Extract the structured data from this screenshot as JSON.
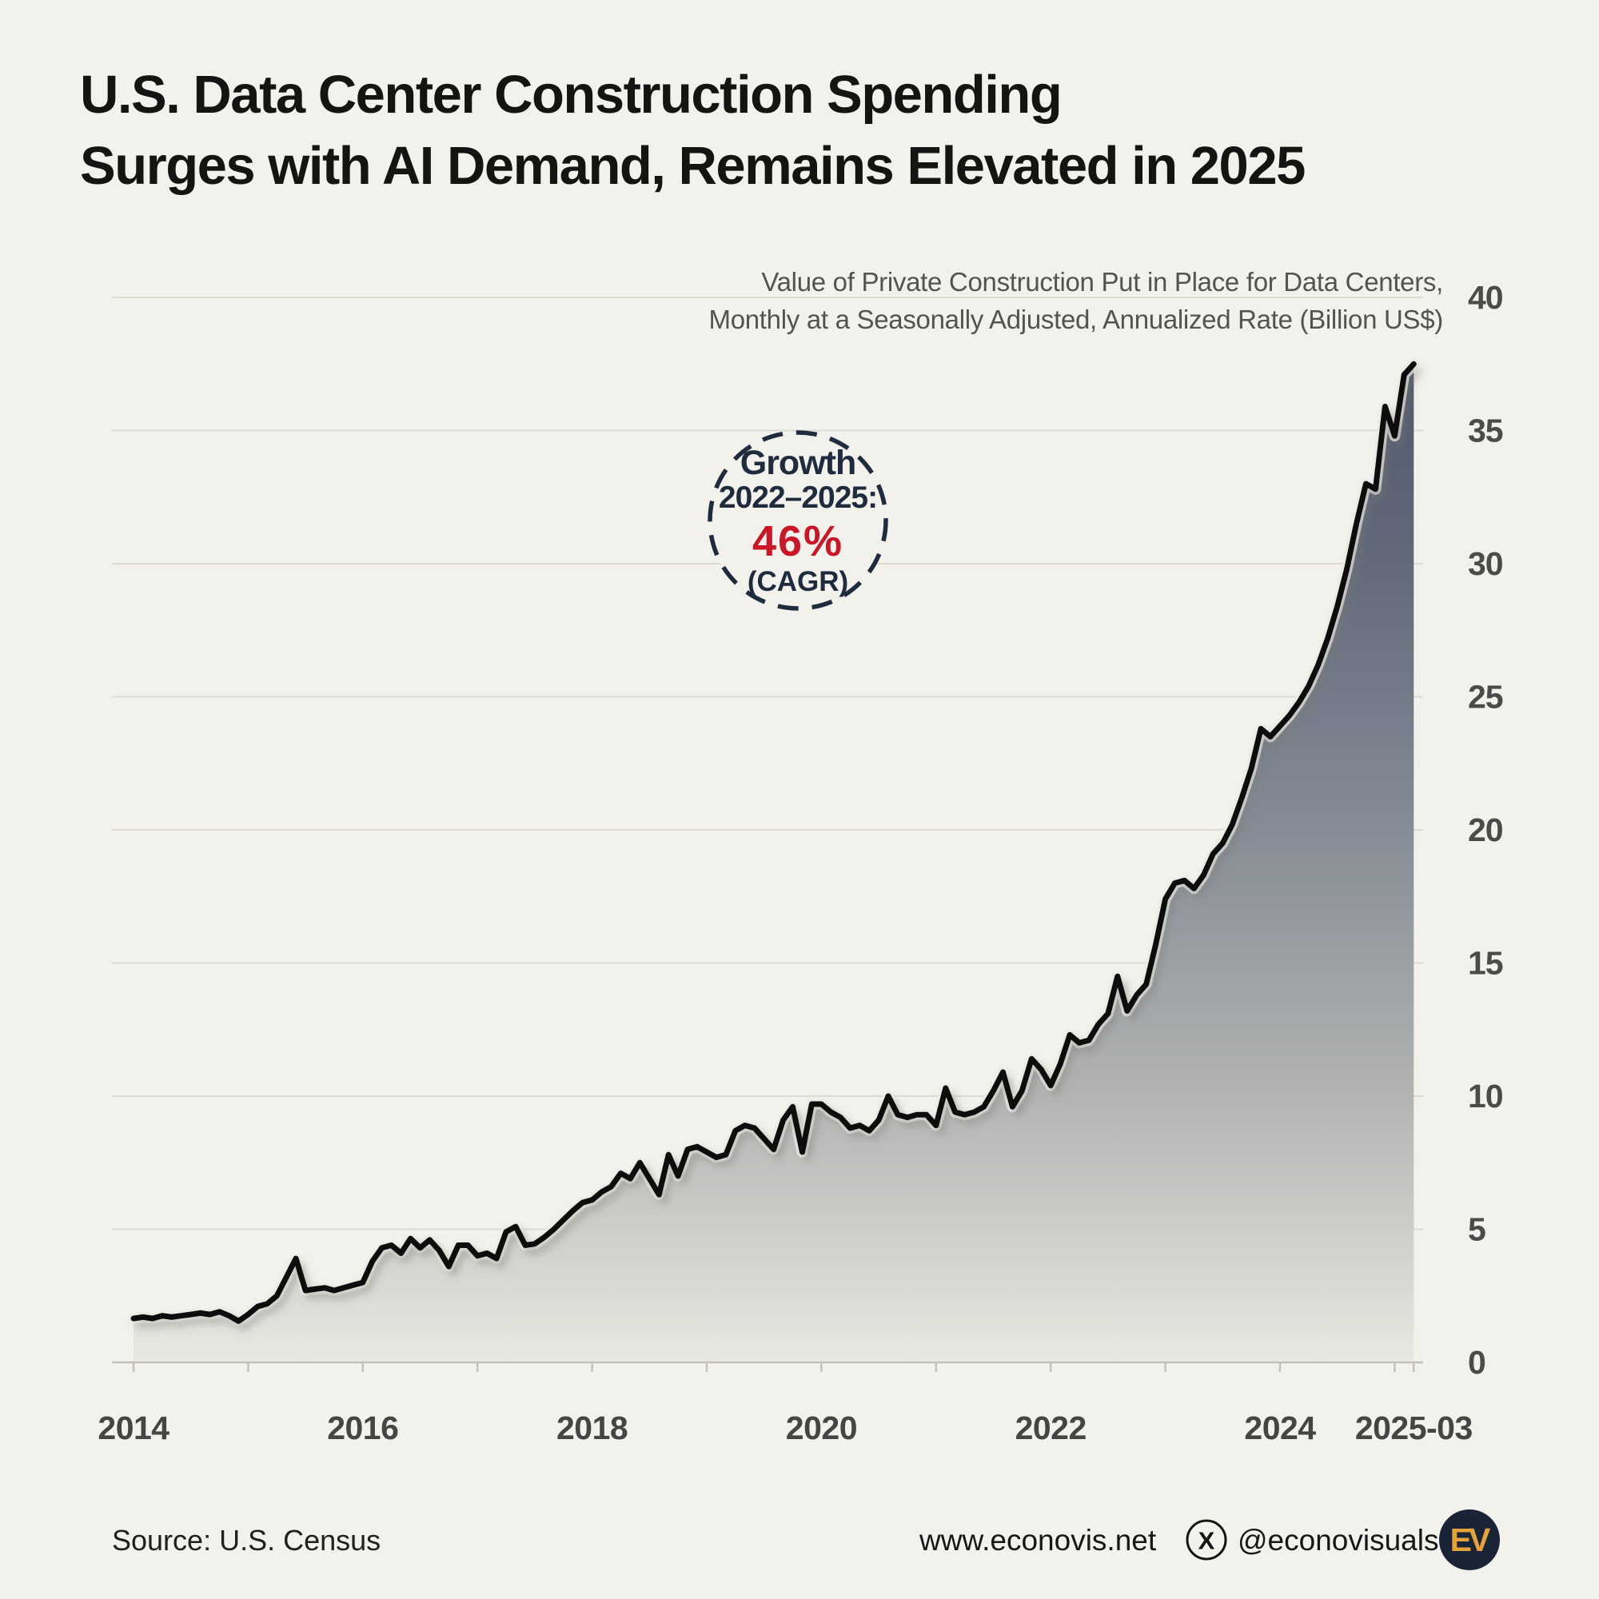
{
  "title": {
    "line1": "U.S. Data Center Construction Spending",
    "line2": "Surges with AI Demand, Remains Elevated in 2025"
  },
  "subtitle": {
    "line1": "Value of Private Construction Put in Place for Data Centers,",
    "line2": "Monthly at a Seasonally Adjusted, Annualized Rate (Billion US$)"
  },
  "annotation": {
    "heading": "Growth",
    "period": "2022–2025:",
    "value": "46%",
    "note": "(CAGR)"
  },
  "footer": {
    "source": "Source: U.S. Census",
    "website": "www.econovis.net",
    "x_icon": "x-logo-icon",
    "social_handle": "@econovisuals",
    "ev_logo_text": "EV"
  },
  "colors": {
    "background": "#f2f1ec",
    "title_text": "#141412",
    "subtitle_text": "#55534f",
    "annotation_navy": "#1e2c3e",
    "annotation_red": "#ca1626",
    "line": "#0d0d0d",
    "gridline": "#dcdad3",
    "axis": "#c4c2bb",
    "tick_label": "#4b4b49",
    "ev_badge_bg": "#1a2437",
    "ev_badge_text": "#e7a23a"
  },
  "chart_data": {
    "type": "area",
    "title": "Value of Private Construction Put in Place for Data Centers",
    "unit": "Billion US$",
    "start_month": "2014-01",
    "end_month": "2025-03",
    "x_tick_labels": [
      "2014",
      "2016",
      "2018",
      "2020",
      "2022",
      "2024",
      "2025-03"
    ],
    "x_tick_month_offsets": [
      0,
      24,
      48,
      72,
      96,
      120,
      134
    ],
    "ylim": [
      0,
      40
    ],
    "y_ticks": [
      0,
      5,
      10,
      15,
      20,
      25,
      30,
      35,
      40
    ],
    "grid": "horizontal",
    "legend": "none",
    "monthly_values": [
      1.65,
      1.7,
      1.65,
      1.75,
      1.7,
      1.75,
      1.8,
      1.85,
      1.8,
      1.9,
      1.75,
      1.55,
      1.8,
      2.1,
      2.2,
      2.5,
      3.2,
      3.9,
      2.7,
      2.75,
      2.8,
      2.7,
      2.8,
      2.9,
      3.0,
      3.8,
      4.3,
      4.4,
      4.1,
      4.65,
      4.3,
      4.6,
      4.2,
      3.6,
      4.4,
      4.4,
      4.0,
      4.1,
      3.9,
      4.9,
      5.1,
      4.4,
      4.45,
      4.7,
      5.0,
      5.35,
      5.7,
      6.0,
      6.1,
      6.4,
      6.6,
      7.1,
      6.9,
      7.5,
      6.9,
      6.3,
      7.8,
      7.0,
      8.0,
      8.1,
      7.9,
      7.7,
      7.8,
      8.7,
      8.9,
      8.8,
      8.4,
      8.0,
      9.1,
      9.6,
      7.9,
      9.7,
      9.7,
      9.4,
      9.2,
      8.8,
      8.9,
      8.7,
      9.1,
      10.0,
      9.3,
      9.2,
      9.3,
      9.3,
      8.9,
      10.3,
      9.4,
      9.3,
      9.4,
      9.6,
      10.2,
      10.9,
      9.6,
      10.2,
      11.4,
      11.0,
      10.4,
      11.2,
      12.3,
      12.0,
      12.1,
      12.7,
      13.1,
      14.5,
      13.2,
      13.8,
      14.2,
      15.7,
      17.4,
      18.0,
      18.1,
      17.8,
      18.3,
      19.1,
      19.5,
      20.2,
      21.2,
      22.3,
      23.8,
      23.5,
      23.9,
      24.3,
      24.8,
      25.4,
      26.2,
      27.2,
      28.4,
      29.8,
      31.5,
      33.0,
      32.8,
      35.9,
      34.8,
      37.1,
      37.5
    ],
    "line_color": "#0d0d0d",
    "fill_gradient": [
      "#4a5166",
      "#626a7a",
      "#868c96",
      "#b2b4b2",
      "#e9e8e1"
    ]
  }
}
